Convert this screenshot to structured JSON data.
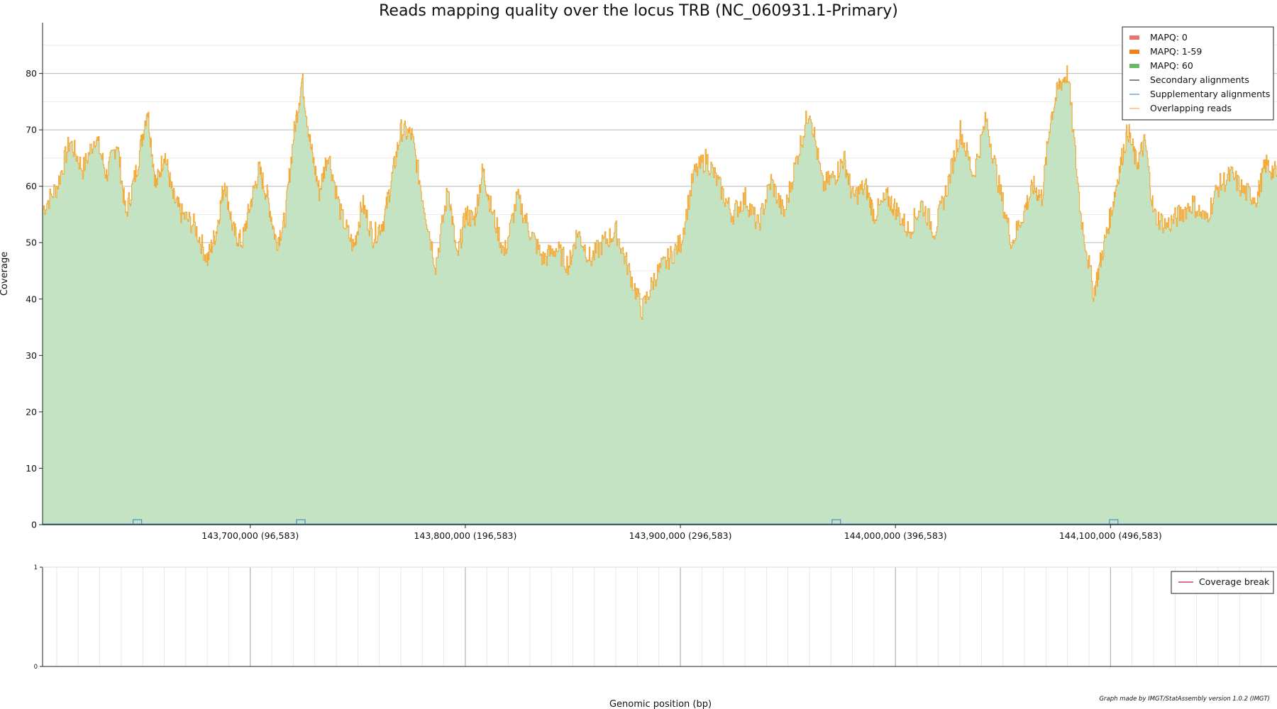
{
  "chart_data": [
    {
      "type": "area",
      "title": "Reads mapping quality over the locus TRB (NC_060931.1-Primary)",
      "xlabel": "",
      "ylabel": "Coverage",
      "xlim": [
        143603417,
        144177417
      ],
      "ylim": [
        0,
        89
      ],
      "x_ticks": [
        {
          "value": 143700000,
          "label": "143,700,000 (96,583)"
        },
        {
          "value": 143800000,
          "label": "143,800,000 (196,583)"
        },
        {
          "value": 143900000,
          "label": "143,900,000 (296,583)"
        },
        {
          "value": 144000000,
          "label": "144,000,000 (396,583)"
        },
        {
          "value": 144100000,
          "label": "144,100,000 (496,583)"
        }
      ],
      "y_ticks": [
        0,
        10,
        20,
        30,
        40,
        50,
        60,
        70,
        80
      ],
      "grid": true,
      "legend_position": "top-right",
      "legend": [
        {
          "label": "MAPQ: 0",
          "color": "#e8736f",
          "kind": "patch"
        },
        {
          "label": "MAPQ: 1-59",
          "color": "#f07f1e",
          "kind": "patch"
        },
        {
          "label": "MAPQ: 60",
          "color": "#6bb86b",
          "kind": "patch"
        },
        {
          "label": "Secondary alignments",
          "color": "#333333",
          "kind": "line"
        },
        {
          "label": "Supplementary alignments",
          "color": "#4a8fd6",
          "kind": "line"
        },
        {
          "label": "Overlapping reads",
          "color": "#f5b342",
          "kind": "line"
        }
      ],
      "series": [
        {
          "name": "MAPQ: 60",
          "color": "#c3e3c3",
          "x": [
            143603417,
            143610000,
            143616000,
            143622000,
            143628000,
            143633000,
            143638000,
            143642000,
            143647000,
            143652000,
            143656000,
            143660000,
            143664000,
            143668000,
            143674000,
            143680000,
            143684000,
            143688000,
            143692000,
            143696000,
            143700000,
            143704000,
            143708000,
            143712000,
            143716000,
            143720000,
            143724000,
            143728000,
            143732000,
            143736000,
            143742000,
            143748000,
            143752000,
            143757000,
            143762000,
            143766000,
            143770000,
            143775000,
            143780000,
            143786000,
            143792000,
            143796000,
            143800000,
            143804000,
            143808000,
            143812000,
            143818000,
            143824000,
            143830000,
            143836000,
            143842000,
            143848000,
            143852000,
            143858000,
            143864000,
            143870000,
            143876000,
            143882000,
            143888000,
            143894000,
            143900000,
            143906000,
            143912000,
            143918000,
            143924000,
            143930000,
            143936000,
            143942000,
            143948000,
            143954000,
            143960000,
            143966000,
            143972000,
            143976000,
            143980000,
            143986000,
            143990000,
            143996000,
            144000000,
            144006000,
            144012000,
            144018000,
            144024000,
            144030000,
            144036000,
            144042000,
            144048000,
            144054000,
            144060000,
            144064000,
            144068000,
            144072000,
            144076000,
            144080000,
            144086000,
            144092000,
            144096000,
            144100000,
            144104000,
            144108000,
            144112000,
            144116000,
            144120000,
            144126000,
            144132000,
            144138000,
            144144000,
            144150000,
            144156000,
            144162000,
            144168000,
            144172000,
            144177417
          ],
          "values": [
            56,
            60,
            68,
            63,
            69,
            62,
            68,
            55,
            63,
            74,
            60,
            66,
            58,
            55,
            53,
            47,
            52,
            61,
            52,
            50,
            57,
            63,
            58,
            50,
            54,
            69,
            79,
            67,
            59,
            66,
            55,
            49,
            57,
            51,
            54,
            62,
            70,
            69,
            58,
            46,
            60,
            47,
            55,
            54,
            63,
            56,
            48,
            58,
            52,
            47,
            49,
            46,
            52,
            47,
            50,
            52,
            45,
            38,
            44,
            47,
            50,
            62,
            65,
            60,
            55,
            58,
            53,
            61,
            55,
            65,
            74,
            60,
            62,
            65,
            58,
            60,
            55,
            58,
            56,
            52,
            57,
            52,
            60,
            70,
            62,
            72,
            60,
            50,
            56,
            60,
            58,
            72,
            78,
            80,
            55,
            41,
            48,
            55,
            63,
            70,
            64,
            68,
            55,
            53,
            55,
            57,
            54,
            60,
            62,
            59,
            58,
            64,
            62
          ]
        }
      ],
      "supplementary_markers": [
        143647500,
        143723500,
        143972500,
        144101500
      ]
    },
    {
      "type": "line",
      "title": "",
      "xlabel": "Genomic position (bp)",
      "ylabel": "",
      "ylim": [
        0,
        1
      ],
      "y_ticks": [
        0,
        1
      ],
      "grid": true,
      "legend_position": "top-right",
      "legend": [
        {
          "label": "Coverage break",
          "color": "#c2185b",
          "kind": "line"
        }
      ],
      "series": []
    }
  ],
  "credit": "Graph made by IMGT/StatAssembly version 1.0.2 (IMGT)"
}
